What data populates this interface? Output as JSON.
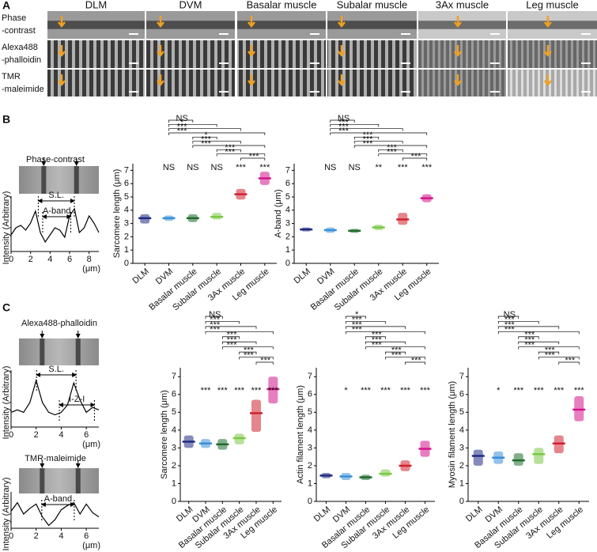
{
  "panel_labels": [
    "A",
    "B",
    "C"
  ],
  "panel_a": {
    "columns": [
      "DLM",
      "DVM",
      "Basalar muscle",
      "Subalar muscle",
      "3Ax muscle",
      "Leg muscle"
    ],
    "rows": [
      [
        "Phase",
        "-contrast"
      ],
      [
        "Alexa488",
        "-phalloidin"
      ],
      [
        "TMR",
        "-maleimide"
      ]
    ]
  },
  "chart_data": [
    {
      "type": "line",
      "title": "Phase-contrast",
      "ylabel": "Intensity (Arbitrary)",
      "xunit": "(μm)",
      "annotations": [
        "S.L.",
        "A-band"
      ],
      "x": [
        0,
        0.5,
        1,
        1.5,
        2,
        2.5,
        3,
        3.5,
        4,
        4.5,
        5,
        5.5,
        6,
        6.5,
        7,
        7.5,
        8,
        8.5,
        9
      ],
      "values": [
        0.35,
        0.5,
        0.55,
        0.45,
        0.6,
        0.85,
        0.4,
        0.2,
        0.35,
        0.5,
        0.45,
        0.3,
        0.75,
        0.9,
        0.4,
        0.5,
        0.75,
        0.6,
        0.4
      ],
      "xlim": [
        0,
        9
      ],
      "xticks": [
        0,
        2,
        4,
        6,
        8
      ],
      "ylim": [
        0,
        1
      ],
      "color": "#000000"
    },
    {
      "type": "dot",
      "ylabel": "Sarcomere length (μm)",
      "categories": [
        "DLM",
        "DVM",
        "Basalar muscle",
        "Subalar muscle",
        "3Ax muscle",
        "Leg muscle"
      ],
      "values": [
        3.4,
        3.4,
        3.4,
        3.5,
        5.2,
        6.4
      ],
      "ranges": [
        [
          3.0,
          3.7
        ],
        [
          3.2,
          3.6
        ],
        [
          3.1,
          3.7
        ],
        [
          3.3,
          3.8
        ],
        [
          4.8,
          5.6
        ],
        [
          5.9,
          6.9
        ]
      ],
      "colors": [
        "#1f2a80",
        "#3a8fd8",
        "#1f6b2e",
        "#7ac943",
        "#d0202e",
        "#d4148c"
      ],
      "ylim": [
        0,
        7.5
      ],
      "yticks": [
        0,
        1,
        2,
        3,
        4,
        5,
        6,
        7
      ],
      "vs_dlm": [
        "NS",
        "NS",
        "NS",
        "***",
        "***"
      ],
      "comparisons": [
        "NS",
        "*",
        "***",
        "***",
        "*",
        "***",
        "***",
        "***",
        "***",
        "***"
      ]
    },
    {
      "type": "dot",
      "ylabel": "A-band (μm)",
      "categories": [
        "DLM",
        "DVM",
        "Basalar muscle",
        "Subalar muscle",
        "3Ax muscle",
        "Leg muscle"
      ],
      "values": [
        2.55,
        2.5,
        2.45,
        2.7,
        3.3,
        4.9
      ],
      "ranges": [
        [
          2.4,
          2.7
        ],
        [
          2.3,
          2.7
        ],
        [
          2.3,
          2.6
        ],
        [
          2.5,
          2.9
        ],
        [
          2.9,
          3.8
        ],
        [
          4.6,
          5.2
        ]
      ],
      "colors": [
        "#1f2a80",
        "#3a8fd8",
        "#1f6b2e",
        "#7ac943",
        "#d0202e",
        "#d4148c"
      ],
      "ylim": [
        0,
        7.5
      ],
      "yticks": [
        0,
        1,
        2,
        3,
        4,
        5,
        6,
        7
      ],
      "vs_dlm": [
        "NS",
        "NS",
        "**",
        "***",
        "***"
      ],
      "comparisons": [
        "NS",
        "***",
        "***",
        "***",
        "***",
        "***",
        "***",
        "***",
        "***",
        "***"
      ]
    },
    {
      "type": "line",
      "title": "Alexa488-phalloidin",
      "ylabel": "Intensity (Arbitrary)",
      "xunit": "(μm)",
      "annotations": [
        "S.L.",
        "I-Z-I"
      ],
      "x": [
        0,
        0.5,
        1,
        1.5,
        2,
        2.5,
        3,
        3.5,
        4,
        4.5,
        5,
        5.5,
        6,
        6.5,
        7
      ],
      "values": [
        0.3,
        0.35,
        0.3,
        0.5,
        0.95,
        0.5,
        0.3,
        0.25,
        0.3,
        0.45,
        0.9,
        0.55,
        0.3,
        0.4,
        0.35
      ],
      "xlim": [
        0,
        7
      ],
      "xticks": [
        0,
        2,
        4,
        6
      ],
      "ylim": [
        0,
        1
      ],
      "color": "#000000"
    },
    {
      "type": "line",
      "title": "TMR-maleimide",
      "ylabel": "Intensity (Arbitrary)",
      "xunit": "(μm)",
      "annotations": [
        "A-band"
      ],
      "x": [
        0,
        0.5,
        1,
        1.5,
        2,
        2.5,
        3,
        3.5,
        4,
        4.5,
        5,
        5.5,
        6,
        6.5,
        7
      ],
      "values": [
        0.6,
        0.9,
        0.5,
        0.7,
        0.85,
        0.4,
        0.1,
        0.3,
        0.65,
        0.8,
        0.9,
        0.5,
        0.85,
        0.55,
        0.4
      ],
      "xlim": [
        0,
        7
      ],
      "xticks": [
        0,
        2,
        4,
        6
      ],
      "ylim": [
        0,
        1
      ],
      "color": "#000000"
    },
    {
      "type": "dot",
      "ylabel": "Sarcomere length (μm)",
      "categories": [
        "DLM",
        "DVM",
        "Basalar muscle",
        "Subalar muscle",
        "3Ax muscle",
        "Leg muscle"
      ],
      "values": [
        3.35,
        3.25,
        3.2,
        3.55,
        4.95,
        6.3
      ],
      "ranges": [
        [
          3.0,
          3.7
        ],
        [
          3.0,
          3.5
        ],
        [
          2.9,
          3.5
        ],
        [
          3.2,
          3.8
        ],
        [
          3.9,
          5.7
        ],
        [
          5.5,
          7.0
        ]
      ],
      "colors": [
        "#1f2a80",
        "#3a8fd8",
        "#1f6b2e",
        "#7ac943",
        "#d0202e",
        "#d4148c"
      ],
      "ylim": [
        0,
        7.5
      ],
      "yticks": [
        0,
        1,
        2,
        3,
        4,
        5,
        6,
        7
      ],
      "vs_dlm": [
        "***",
        "***",
        "***",
        "***",
        "***"
      ],
      "comparisons": [
        "NS",
        "***",
        "***",
        "***",
        "***",
        "***",
        "***",
        "***",
        "***",
        "***"
      ]
    },
    {
      "type": "dot",
      "ylabel": "Actin filament length (μm)",
      "categories": [
        "DLM",
        "DVM",
        "Basalar muscle",
        "Subalar muscle",
        "3Ax muscle",
        "Leg muscle"
      ],
      "values": [
        1.45,
        1.4,
        1.35,
        1.55,
        2.0,
        2.95
      ],
      "ranges": [
        [
          1.3,
          1.6
        ],
        [
          1.2,
          1.6
        ],
        [
          1.2,
          1.5
        ],
        [
          1.4,
          1.8
        ],
        [
          1.7,
          2.3
        ],
        [
          2.5,
          3.4
        ]
      ],
      "colors": [
        "#1f2a80",
        "#3a8fd8",
        "#1f6b2e",
        "#7ac943",
        "#d0202e",
        "#d4148c"
      ],
      "ylim": [
        0,
        7.5
      ],
      "yticks": [
        0,
        1,
        2,
        3,
        4,
        5,
        6,
        7
      ],
      "vs_dlm": [
        "*",
        "***",
        "***",
        "***",
        "***"
      ],
      "comparisons": [
        "*",
        "***",
        "***",
        "***",
        "***",
        "***",
        "***",
        "***",
        "***",
        "***"
      ]
    },
    {
      "type": "dot",
      "ylabel": "Myosin filament length (μm)",
      "categories": [
        "DLM",
        "DVM",
        "Basalar muscle",
        "Subalar muscle",
        "3Ax muscle",
        "Leg muscle"
      ],
      "values": [
        2.55,
        2.45,
        2.3,
        2.65,
        3.25,
        5.15
      ],
      "ranges": [
        [
          2.0,
          2.9
        ],
        [
          2.1,
          2.8
        ],
        [
          2.0,
          2.7
        ],
        [
          2.1,
          3.0
        ],
        [
          2.7,
          3.7
        ],
        [
          4.5,
          5.9
        ]
      ],
      "colors": [
        "#1f2a80",
        "#3a8fd8",
        "#1f6b2e",
        "#7ac943",
        "#d0202e",
        "#d4148c"
      ],
      "ylim": [
        0,
        7.5
      ],
      "yticks": [
        0,
        1,
        2,
        3,
        4,
        5,
        6,
        7
      ],
      "vs_dlm": [
        "*",
        "***",
        "***",
        "***",
        "***"
      ],
      "comparisons": [
        "NS",
        "***",
        "***",
        "***",
        "***",
        "***",
        "***",
        "***",
        "***",
        "***"
      ]
    }
  ]
}
